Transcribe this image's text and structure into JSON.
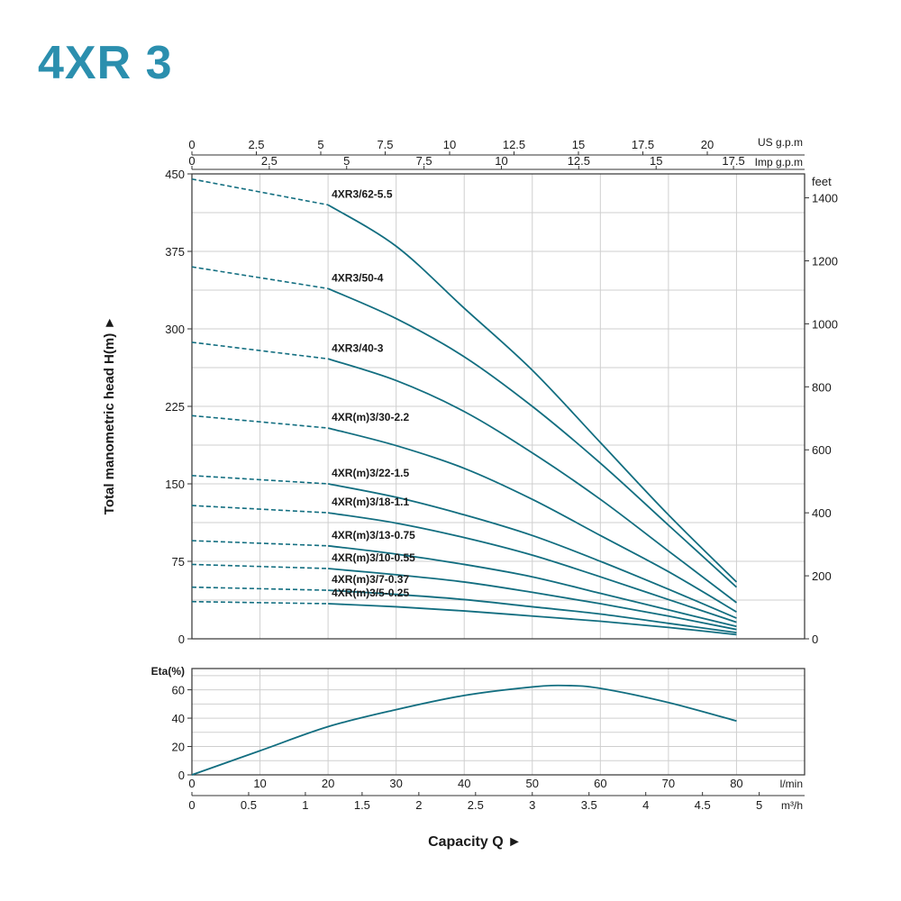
{
  "page": {
    "title": "4XR 3"
  },
  "colors": {
    "title": "#2b8fae",
    "curve": "#126e80",
    "grid": "#cfcfcf",
    "axis": "#333333",
    "text": "#1a1a1a"
  },
  "chart_data": [
    {
      "type": "line",
      "panel": "head",
      "ylabel": "Total manometric head H(m)",
      "ylabel_arrow": "►",
      "ylim": [
        0,
        450
      ],
      "yticks": [
        "0",
        "75",
        "150",
        "225",
        "300",
        "375",
        "450"
      ],
      "right_axis": {
        "label": "feet",
        "lim": [
          0,
          1476
        ],
        "ticks": [
          "0",
          "200",
          "400",
          "600",
          "800",
          "1000",
          "1200",
          "1400"
        ]
      },
      "top_axes": [
        {
          "label": "US g.p.m",
          "ticks": [
            "0",
            "2.5",
            "5",
            "7.5",
            "10",
            "12.5",
            "15",
            "17.5",
            "20"
          ]
        },
        {
          "label": "Imp g.p.m",
          "ticks": [
            "0",
            "2.5",
            "5",
            "7.5",
            "10",
            "12.5",
            "15",
            "17.5"
          ]
        }
      ],
      "xlim": [
        0,
        90
      ],
      "grid": true,
      "x": [
        0,
        20,
        30,
        40,
        50,
        60,
        70,
        80
      ],
      "dashed_until": 20,
      "series": [
        {
          "name": "4XR3/62-5.5",
          "values": [
            445,
            420,
            380,
            320,
            260,
            190,
            120,
            55
          ]
        },
        {
          "name": "4XR3/50-4",
          "values": [
            360,
            339,
            310,
            273,
            225,
            170,
            110,
            50
          ]
        },
        {
          "name": "4XR3/40-3",
          "values": [
            287,
            271,
            250,
            220,
            180,
            135,
            85,
            35
          ]
        },
        {
          "name": "4XR(m)3/30-2.2",
          "values": [
            216,
            204,
            187,
            165,
            135,
            100,
            65,
            26
          ]
        },
        {
          "name": "4XR(m)3/22-1.5",
          "values": [
            158,
            150,
            137,
            120,
            100,
            75,
            48,
            20
          ]
        },
        {
          "name": "4XR(m)3/18-1.1",
          "values": [
            129,
            122,
            112,
            98,
            81,
            60,
            38,
            16
          ]
        },
        {
          "name": "4XR(m)3/13-0.75",
          "values": [
            95,
            90,
            82,
            72,
            60,
            44,
            28,
            12
          ]
        },
        {
          "name": "4XR(m)3/10-0.55",
          "values": [
            72,
            68,
            62,
            55,
            45,
            34,
            22,
            9
          ]
        },
        {
          "name": "4XR(m)3/7-0.37",
          "values": [
            50,
            47,
            43,
            38,
            31,
            24,
            15,
            6
          ]
        },
        {
          "name": "4XR(m)3/5-0.25",
          "values": [
            36,
            34,
            31,
            27,
            22,
            17,
            11,
            4
          ]
        }
      ]
    },
    {
      "type": "line",
      "panel": "efficiency",
      "ylabel": "Eta(%)",
      "ylim": [
        0,
        75
      ],
      "yticks": [
        "0",
        "20",
        "40",
        "60"
      ],
      "grid": true,
      "xlim": [
        0,
        90
      ],
      "x": [
        0,
        10,
        20,
        30,
        40,
        50,
        55,
        60,
        70,
        80
      ],
      "series": [
        {
          "name": "",
          "values": [
            0,
            17,
            34,
            46,
            56,
            62,
            63,
            61,
            51,
            38
          ]
        }
      ]
    }
  ],
  "x_axes": {
    "lmin": {
      "label": "l/min",
      "ticks": [
        "0",
        "10",
        "20",
        "30",
        "40",
        "50",
        "60",
        "70",
        "80"
      ]
    },
    "m3h": {
      "label": "m³/h",
      "ticks": [
        "0",
        "0.5",
        "1",
        "1.5",
        "2",
        "2.5",
        "3",
        "3.5",
        "4",
        "4.5",
        "5"
      ]
    },
    "title": "Capacity Q",
    "arrow": "►"
  }
}
